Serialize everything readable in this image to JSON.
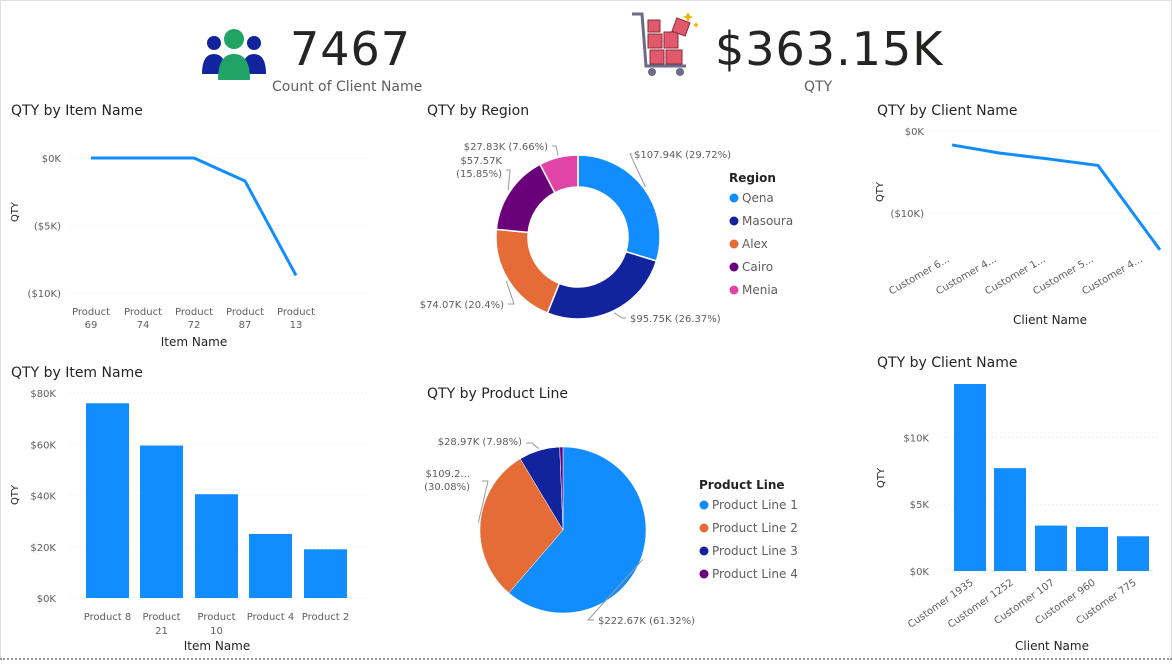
{
  "kpis": [
    {
      "value": "7467",
      "label": "Count of Client Name"
    },
    {
      "value": "$363.15K",
      "label": "QTY"
    }
  ],
  "icons": {
    "people": "people-group-icon",
    "cart": "shopping-cart-icon"
  },
  "colors": {
    "blue": "#118DFF",
    "navy": "#12239E",
    "orange": "#E66C37",
    "purple": "#6B007B",
    "pink": "#E044A7",
    "grid": "#e6e6e6",
    "axis_text": "#605e5c"
  },
  "chart_data": [
    {
      "id": "qty-by-item-line",
      "type": "line",
      "title": "QTY by Item Name",
      "xlabel": "Item Name",
      "ylabel": "QTY",
      "categories": [
        "Product 69",
        "Product 74",
        "Product 72",
        "Product 87",
        "Product 13"
      ],
      "category_lines": [
        [
          "Product",
          "69"
        ],
        [
          "Product",
          "74"
        ],
        [
          "Product",
          "72"
        ],
        [
          "Product",
          "87"
        ],
        [
          "Product",
          "13"
        ]
      ],
      "values": [
        0,
        0,
        0,
        -1700,
        -8700
      ],
      "ylim": [
        -10000,
        0
      ],
      "yticks": [
        0,
        -5000,
        -10000
      ],
      "ytick_labels": [
        "$0K",
        "($5K)",
        "($10K)"
      ],
      "grid": true
    },
    {
      "id": "qty-by-region-donut",
      "type": "pie",
      "donut": true,
      "title": "QTY by Region",
      "legend_title": "Region",
      "legend_position": "right",
      "slices": [
        {
          "name": "Qena",
          "value": 107940,
          "label": "$107.94K (29.72%)",
          "color": "#118DFF"
        },
        {
          "name": "Masoura",
          "value": 95750,
          "label": "$95.75K (26.37%)",
          "color": "#12239E"
        },
        {
          "name": "Alex",
          "value": 74070,
          "label": "$74.07K (20.4%)",
          "color": "#E66C37"
        },
        {
          "name": "Cairo",
          "value": 57570,
          "label": "$57.57K (15.85%)",
          "label_lines": [
            "$57.57K",
            "(15.85%)"
          ],
          "color": "#6B007B"
        },
        {
          "name": "Menia",
          "value": 27830,
          "label": "$27.83K (7.66%)",
          "color": "#E044A7"
        }
      ]
    },
    {
      "id": "qty-by-client-line",
      "type": "line",
      "title": "QTY by Client Name",
      "xlabel": "Client Name",
      "ylabel": "QTY",
      "categories": [
        "Customer 6...",
        "Customer 4...",
        "Customer 1...",
        "Customer 5...",
        "Customer 4..."
      ],
      "values": [
        -1700,
        -2700,
        -3400,
        -4200,
        -14500
      ],
      "ylim": [
        -15000,
        0
      ],
      "yticks": [
        0,
        -10000
      ],
      "ytick_labels": [
        "$0K",
        "($10K)"
      ],
      "grid": true
    },
    {
      "id": "qty-by-item-bar",
      "type": "bar",
      "title": "QTY by Item Name",
      "xlabel": "Item Name",
      "ylabel": "QTY",
      "categories": [
        "Product 8",
        "Product 21",
        "Product 10",
        "Product 4",
        "Product 2"
      ],
      "category_lines": [
        [
          "Product 8"
        ],
        [
          "Product",
          "21"
        ],
        [
          "Product",
          "10"
        ],
        [
          "Product 4"
        ],
        [
          "Product 2"
        ]
      ],
      "values": [
        76000,
        59500,
        40500,
        25000,
        19000
      ],
      "ylim": [
        0,
        80000
      ],
      "yticks": [
        0,
        20000,
        40000,
        60000,
        80000
      ],
      "ytick_labels": [
        "$0K",
        "$20K",
        "$40K",
        "$60K",
        "$80K"
      ],
      "grid": true
    },
    {
      "id": "qty-by-product-line-pie",
      "type": "pie",
      "title": "QTY by Product Line",
      "legend_title": "Product Line",
      "legend_position": "right",
      "slices": [
        {
          "name": "Product Line 1",
          "value": 222670,
          "label": "$222.67K (61.32%)",
          "color": "#118DFF"
        },
        {
          "name": "Product Line 2",
          "value": 109200,
          "label": "$109.2... (30.08%)",
          "label_lines": [
            "$109.2...",
            "(30.08%)"
          ],
          "color": "#E66C37"
        },
        {
          "name": "Product Line 3",
          "value": 28970,
          "label": "$28.97K (7.98%)",
          "color": "#12239E"
        },
        {
          "name": "Product Line 4",
          "value": 2310,
          "label": "",
          "color": "#6B007B"
        }
      ]
    },
    {
      "id": "qty-by-client-bar",
      "type": "bar",
      "title": "QTY by Client Name",
      "xlabel": "Client Name",
      "ylabel": "QTY",
      "categories": [
        "Customer 1935",
        "Customer 1252",
        "Customer 107",
        "Customer 960",
        "Customer 775"
      ],
      "values": [
        14000,
        7700,
        3400,
        3300,
        2600
      ],
      "ylim": [
        0,
        14000
      ],
      "yticks": [
        0,
        5000,
        10000
      ],
      "ytick_labels": [
        "$0K",
        "$5K",
        "$10K"
      ],
      "grid": true
    }
  ]
}
